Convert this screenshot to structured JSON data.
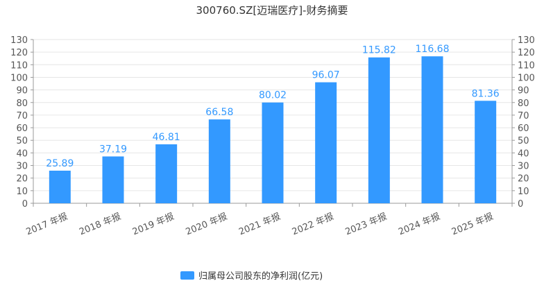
{
  "chart_data": {
    "type": "bar",
    "title": "300760.SZ[迈瑞医疗]-财务摘要",
    "categories": [
      "2017 年报",
      "2018 年报",
      "2019 年报",
      "2020 年报",
      "2021 年报",
      "2022 年报",
      "2023 年报",
      "2024 年报",
      "2025 年报"
    ],
    "series": [
      {
        "name": "归属母公司股东的净利润(亿元)",
        "values": [
          25.89,
          37.19,
          46.81,
          66.58,
          80.02,
          96.07,
          115.82,
          116.68,
          81.36
        ],
        "color": "#3399ff"
      }
    ],
    "ylim": [
      0,
      130
    ],
    "yticks": [
      0,
      10,
      20,
      30,
      40,
      50,
      60,
      70,
      80,
      90,
      100,
      110,
      120,
      130
    ],
    "grid": true,
    "dual_y_axis": true,
    "legend_position": "bottom-center",
    "data_labels": true
  }
}
